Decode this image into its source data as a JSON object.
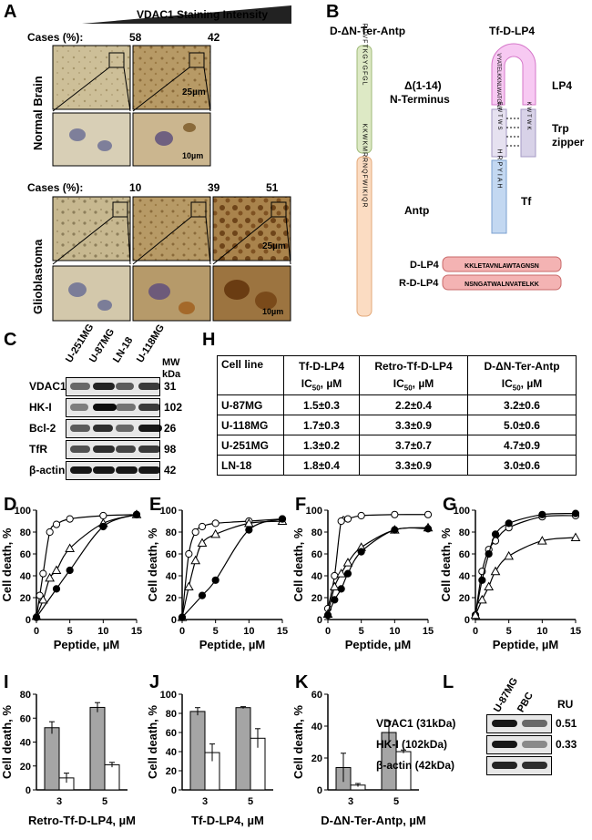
{
  "panels": {
    "A": "A",
    "B": "B",
    "C": "C",
    "D": "D",
    "E": "E",
    "F": "F",
    "G": "G",
    "H": "H",
    "I": "I",
    "J": "J",
    "K": "K",
    "L": "L"
  },
  "panelA": {
    "title": "VDAC1 Staining Intensity",
    "cases_label": "Cases (%):",
    "normal_cases": [
      "58",
      "42"
    ],
    "glio_cases": [
      "10",
      "39",
      "51"
    ],
    "row_normal": "Normal Brain",
    "row_glio": "Glioblastoma",
    "scale_big": "25µm",
    "scale_small": "10µm"
  },
  "panelB": {
    "peptide1": "D-ΔN-Ter-Antp",
    "peptide2": "Tf-D-LP4",
    "nterm_label1": "Δ(1-14)",
    "nterm_label2": "N-Terminus",
    "antp_label": "Antp",
    "lp4_label": "LP4",
    "trp_label1": "Trp",
    "trp_label2": "zipper",
    "tf_label": "Tf",
    "seq_nterm": "RDVFTKGYGFGL",
    "seq_antp": "KKWKMRRNQFWIKIQR",
    "seq_trp_left": "EWTWS",
    "seq_trp_right": "KWTWK",
    "seq_tf": "HRPYIAH",
    "seq_loop": "VYATELKKNLWATGNSN",
    "dlp4_label": "D-LP4",
    "rdlp4_label": "R-D-LP4",
    "dlp4_seq": "KKLETAVNLAWTAGNSN",
    "rdlp4_seq": "NSNGATWALNVATELKK"
  },
  "panelC": {
    "cell_lines": [
      "U-251MG",
      "U-87MG",
      "LN-18",
      "U-118MG"
    ],
    "mw_header": "MW\nkDa",
    "mw_label1": "MW",
    "mw_label2": "kDa",
    "proteins": [
      {
        "name": "VDAC1",
        "mw": "31"
      },
      {
        "name": "HK-I",
        "mw": "102"
      },
      {
        "name": "Bcl-2",
        "mw": "26"
      },
      {
        "name": "TfR",
        "mw": "98"
      },
      {
        "name": "β-actin",
        "mw": "42"
      }
    ]
  },
  "panelH": {
    "headers": [
      "Cell line",
      "Tf-D-LP4",
      "Retro-Tf-D-LP4",
      "D-ΔN-Ter-Antp"
    ],
    "subheader": "IC50, µM",
    "sub_prefix": "IC",
    "sub_index": "50",
    "sub_unit": ", µM",
    "rows": [
      [
        "U-87MG",
        "1.5±0.3",
        "2.2±0.4",
        "3.2±0.6"
      ],
      [
        "U-118MG",
        "1.7±0.3",
        "3.3±0.9",
        "5.0±0.6"
      ],
      [
        "U-251MG",
        "1.3±0.2",
        "3.7±0.7",
        "4.7±0.9"
      ],
      [
        "LN-18",
        "1.8±0.4",
        "3.3±0.9",
        "3.0±0.6"
      ]
    ]
  },
  "panelL": {
    "cols": [
      "U-87MG",
      "PBC"
    ],
    "ru_label": "RU",
    "rows": [
      {
        "name": "VDAC1 (31kDa)",
        "ru": "0.51"
      },
      {
        "name": "HK-I (102kDa)",
        "ru": "0.33"
      },
      {
        "name": "β-actin (42kDa)",
        "ru": ""
      }
    ]
  },
  "chart_data": [
    {
      "panel": "D",
      "type": "line",
      "xlabel": "Peptide, µM",
      "ylabel": "Cell death, %",
      "xlim": [
        0,
        15
      ],
      "ylim": [
        0,
        100
      ],
      "xticks": [
        0,
        5,
        10,
        15
      ],
      "yticks": [
        0,
        20,
        40,
        60,
        80,
        100
      ],
      "series": [
        {
          "marker": "open-circle",
          "x": [
            0,
            0.5,
            1,
            2,
            3,
            5,
            10,
            15
          ],
          "y": [
            2,
            22,
            42,
            80,
            87,
            92,
            95,
            96
          ]
        },
        {
          "marker": "open-triangle",
          "x": [
            0,
            1,
            2,
            3,
            5,
            10,
            15
          ],
          "y": [
            3,
            18,
            38,
            45,
            65,
            88,
            96
          ]
        },
        {
          "marker": "filled-circle",
          "x": [
            0,
            3,
            5,
            10,
            15
          ],
          "y": [
            2,
            28,
            45,
            85,
            96
          ]
        }
      ]
    },
    {
      "panel": "E",
      "type": "line",
      "xlabel": "Peptide, µM",
      "ylabel": "Cell death, %",
      "xlim": [
        0,
        15
      ],
      "ylim": [
        0,
        100
      ],
      "xticks": [
        0,
        5,
        10,
        15
      ],
      "yticks": [
        0,
        20,
        40,
        60,
        80,
        100
      ],
      "series": [
        {
          "marker": "open-circle",
          "x": [
            0,
            1,
            2,
            3,
            5,
            10,
            15
          ],
          "y": [
            2,
            60,
            80,
            85,
            88,
            90,
            92
          ]
        },
        {
          "marker": "open-triangle",
          "x": [
            0,
            1,
            2,
            3,
            5,
            10,
            15
          ],
          "y": [
            2,
            30,
            54,
            70,
            78,
            88,
            90
          ]
        },
        {
          "marker": "filled-circle",
          "x": [
            0,
            3,
            5,
            10,
            15
          ],
          "y": [
            2,
            22,
            36,
            82,
            92
          ]
        }
      ]
    },
    {
      "panel": "F",
      "type": "line",
      "xlabel": "Peptide, µM",
      "ylabel": "Cell death, %",
      "xlim": [
        0,
        15
      ],
      "ylim": [
        0,
        100
      ],
      "xticks": [
        0,
        5,
        10,
        15
      ],
      "yticks": [
        0,
        20,
        40,
        60,
        80,
        100
      ],
      "series": [
        {
          "marker": "open-circle",
          "x": [
            0,
            1,
            2,
            3,
            5,
            10,
            15
          ],
          "y": [
            10,
            40,
            90,
            92,
            95,
            96,
            96
          ]
        },
        {
          "marker": "open-triangle",
          "x": [
            0,
            1,
            2,
            3,
            5,
            10,
            15
          ],
          "y": [
            5,
            30,
            42,
            52,
            66,
            82,
            84
          ]
        },
        {
          "marker": "filled-circle",
          "x": [
            0,
            1,
            2,
            3,
            5,
            10,
            15
          ],
          "y": [
            4,
            18,
            28,
            42,
            62,
            82,
            83
          ]
        }
      ]
    },
    {
      "panel": "G",
      "type": "line",
      "xlabel": "Peptide, µM",
      "ylabel": "Cell death, %",
      "xlim": [
        0,
        15
      ],
      "ylim": [
        0,
        100
      ],
      "xticks": [
        0,
        5,
        10,
        15
      ],
      "yticks": [
        0,
        20,
        40,
        60,
        80,
        100
      ],
      "series": [
        {
          "marker": "open-circle",
          "x": [
            0,
            1,
            2,
            3,
            5,
            10,
            15
          ],
          "y": [
            4,
            44,
            64,
            72,
            84,
            94,
            95
          ]
        },
        {
          "marker": "filled-circle",
          "x": [
            0,
            1,
            2,
            3,
            5,
            10,
            15
          ],
          "y": [
            4,
            36,
            60,
            78,
            88,
            96,
            97
          ]
        },
        {
          "marker": "open-triangle",
          "x": [
            0,
            1,
            2,
            3,
            5,
            10,
            15
          ],
          "y": [
            4,
            18,
            30,
            44,
            58,
            72,
            75
          ]
        }
      ]
    },
    {
      "panel": "I",
      "type": "bar",
      "xlabel": "Retro-Tf-D-LP4, µM",
      "ylabel": "Cell death, %",
      "ylim": [
        0,
        80
      ],
      "yticks": [
        0,
        20,
        40,
        60,
        80
      ],
      "categories": [
        "3",
        "5"
      ],
      "series": [
        {
          "fill": "gray",
          "values": [
            52,
            69
          ],
          "errors": [
            5,
            4
          ]
        },
        {
          "fill": "white",
          "values": [
            10,
            21
          ],
          "errors": [
            4,
            2
          ]
        }
      ]
    },
    {
      "panel": "J",
      "type": "bar",
      "xlabel": "Tf-D-LP4, µM",
      "ylabel": "Cell death, %",
      "ylim": [
        0,
        100
      ],
      "yticks": [
        0,
        20,
        40,
        60,
        80,
        100
      ],
      "categories": [
        "3",
        "5"
      ],
      "series": [
        {
          "fill": "gray",
          "values": [
            82,
            86
          ],
          "errors": [
            4,
            1
          ]
        },
        {
          "fill": "white",
          "values": [
            39,
            54
          ],
          "errors": [
            9,
            10
          ]
        }
      ]
    },
    {
      "panel": "K",
      "type": "bar",
      "xlabel": "D-ΔN-Ter-Antp, µM",
      "ylabel": "Cell death, %",
      "ylim": [
        0,
        60
      ],
      "yticks": [
        0,
        20,
        40,
        60
      ],
      "categories": [
        "3",
        "5"
      ],
      "series": [
        {
          "fill": "gray",
          "values": [
            14,
            36
          ],
          "errors": [
            9,
            7
          ]
        },
        {
          "fill": "white",
          "values": [
            3,
            24
          ],
          "errors": [
            1,
            1
          ]
        }
      ]
    }
  ]
}
